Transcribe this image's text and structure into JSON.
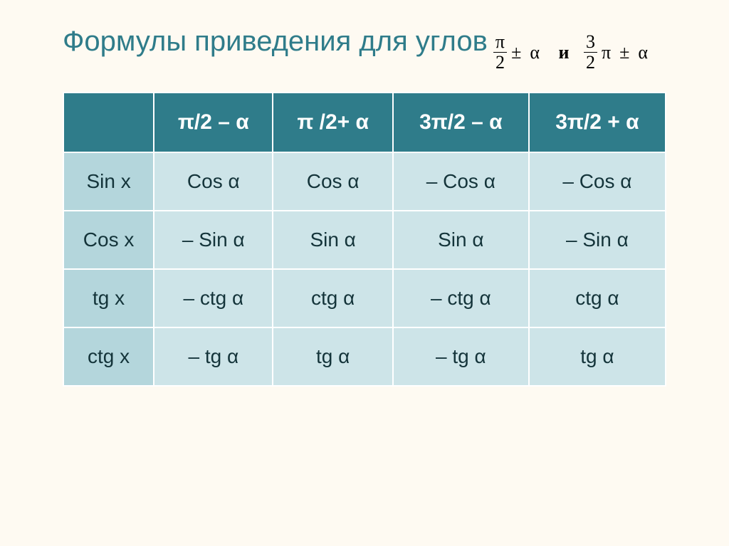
{
  "title": {
    "text": "Формулы приведения для углов",
    "color": "#2f7c8a",
    "fontsize": 40
  },
  "formula": {
    "part1_num": "π",
    "part1_den": "2",
    "pm": "±",
    "alpha": "α",
    "and": "и",
    "part2_num": "3",
    "part2_den": "2",
    "pi": "π",
    "fontsize": 26
  },
  "table": {
    "header_bg": "#2f7c8a",
    "header_fg": "#ffffff",
    "rowheader_bg": "#b4d6dc",
    "rowheader_fg": "#14343a",
    "cell_bg": "#cde4e8",
    "cell_fg": "#14343a",
    "header_fontsize": 30,
    "cell_fontsize": 28,
    "empty_bg": "#2f7c8a",
    "columns": [
      "π/2 – α",
      "π /2+ α",
      "3π/2 – α",
      "3π/2 + α"
    ],
    "rows": [
      {
        "label": "Sin x",
        "cells": [
          "Cos α",
          "Cos α",
          "– Cos α",
          "– Cos α"
        ]
      },
      {
        "label": "Cos x",
        "cells": [
          "– Sin α",
          "Sin α",
          "Sin α",
          "– Sin α"
        ]
      },
      {
        "label": "tg x",
        "cells": [
          "– ctg α",
          "ctg α",
          "– ctg α",
          "ctg α"
        ]
      },
      {
        "label": "ctg x",
        "cells": [
          "– tg α",
          "tg α",
          "– tg α",
          "tg α"
        ]
      }
    ]
  }
}
